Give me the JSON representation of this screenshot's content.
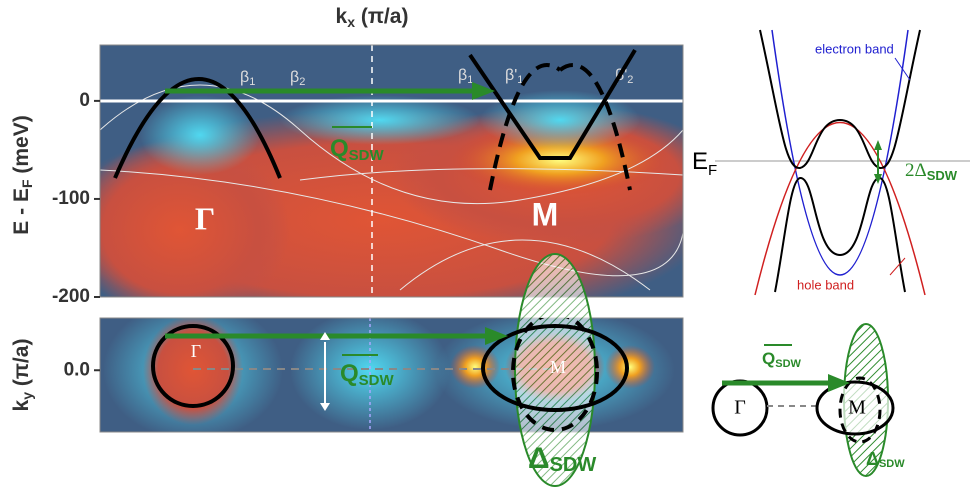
{
  "top_panel": {
    "x_label": "k",
    "x_label_sub": "x",
    "x_label_unit": " (π/a)",
    "y_label": "E - E",
    "y_label_sub": "F",
    "y_label_unit": " (meV)",
    "ylim": [
      -200,
      57
    ],
    "yticks": [
      0,
      -100,
      -200
    ],
    "band_labels": [
      "β",
      "1",
      "β",
      "2",
      "β",
      "1",
      "β'",
      "1",
      "β'",
      "2"
    ],
    "gamma": "Γ",
    "m": "M",
    "q": "Q",
    "q_sub": "SDW"
  },
  "bottom_panel": {
    "y_label": "k",
    "y_label_sub": "y",
    "y_label_unit": " (π/a)",
    "ylim": [
      -0.13,
      0.11
    ],
    "yticks": [
      {
        "value": 0,
        "label": "0.0"
      }
    ],
    "gamma": "Γ",
    "m": "M",
    "q": "Q",
    "q_sub": "SDW",
    "delta": "Δ",
    "delta_sub": "SDW"
  },
  "schematic_bands": {
    "electron_band": "electron band",
    "hole_band": "hole band",
    "fermi": "E",
    "fermi_sub": "F",
    "gap": "2Δ",
    "gap_sub": "SDW"
  },
  "schematic_fs": {
    "gamma": "Γ",
    "m": "M",
    "q": "Q",
    "q_sub": "SDW",
    "delta": "Δ",
    "delta_sub": "SDW"
  }
}
